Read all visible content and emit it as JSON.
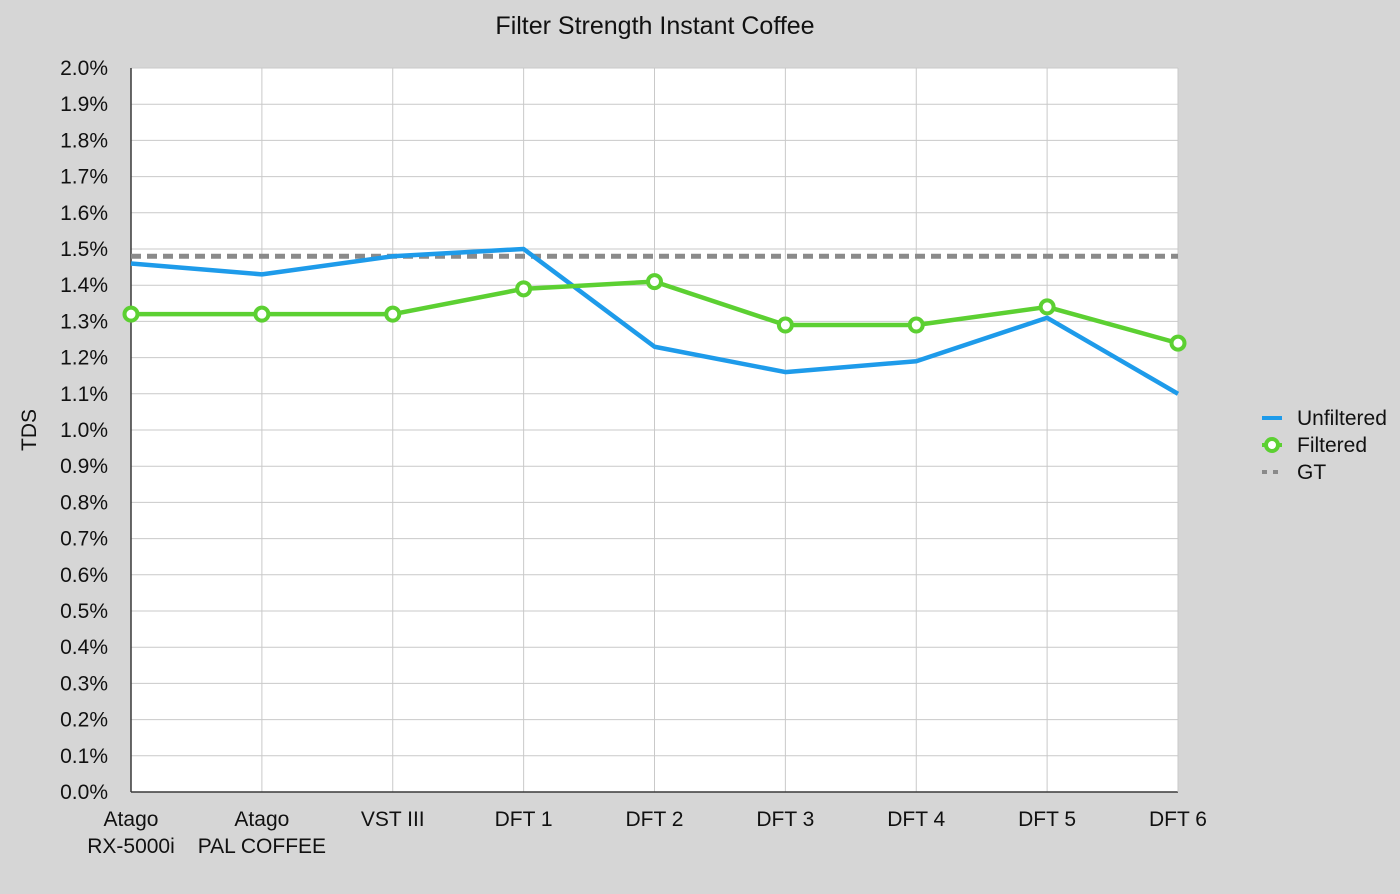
{
  "chart_data": {
    "type": "line",
    "title": "Filter Strength Instant Coffee",
    "xlabel": "",
    "ylabel": "TDS",
    "ylim": [
      0,
      2.0
    ],
    "yticks": [
      "0.0%",
      "0.1%",
      "0.2%",
      "0.3%",
      "0.4%",
      "0.5%",
      "0.6%",
      "0.7%",
      "0.8%",
      "0.9%",
      "1.0%",
      "1.1%",
      "1.2%",
      "1.3%",
      "1.4%",
      "1.5%",
      "1.6%",
      "1.7%",
      "1.8%",
      "1.9%",
      "2.0%"
    ],
    "categories": [
      [
        "Atago",
        "RX-5000i"
      ],
      [
        "Atago",
        "PAL COFFEE"
      ],
      [
        "VST III"
      ],
      [
        "DFT 1"
      ],
      [
        "DFT 2"
      ],
      [
        "DFT 3"
      ],
      [
        "DFT 4"
      ],
      [
        "DFT 5"
      ],
      [
        "DFT 6"
      ]
    ],
    "grid": true,
    "legend_position": "right",
    "series": [
      {
        "name": "Unfiltered",
        "color": "#1e9bea",
        "marker": "none",
        "style": "solid",
        "values": [
          1.46,
          1.43,
          1.48,
          1.5,
          1.23,
          1.16,
          1.19,
          1.31,
          1.1
        ]
      },
      {
        "name": "Filtered",
        "color": "#5cd032",
        "marker": "ring",
        "style": "solid",
        "values": [
          1.32,
          1.32,
          1.32,
          1.39,
          1.41,
          1.29,
          1.29,
          1.34,
          1.24
        ]
      },
      {
        "name": "GT",
        "color": "#8a8a8a",
        "marker": "none",
        "style": "dashed",
        "values": [
          1.48,
          1.48,
          1.48,
          1.48,
          1.48,
          1.48,
          1.48,
          1.48,
          1.48
        ]
      }
    ]
  }
}
